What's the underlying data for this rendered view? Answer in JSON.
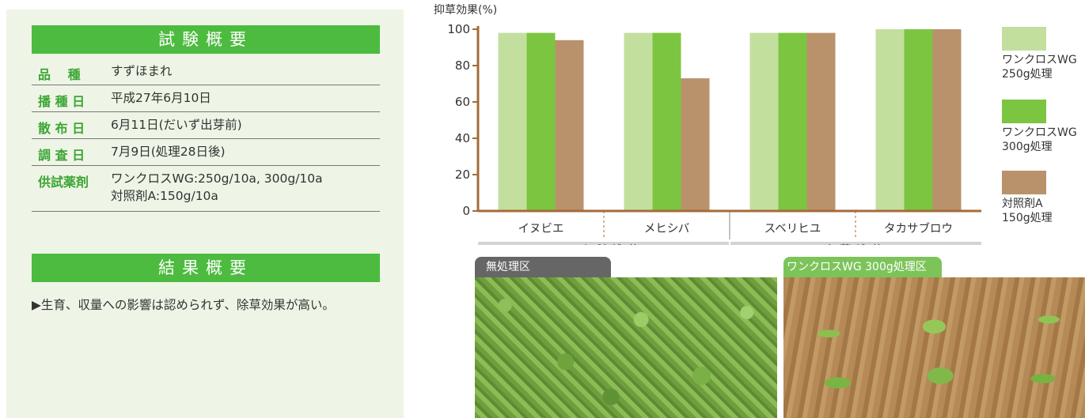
{
  "overview": {
    "header": "試験概要",
    "rows": [
      {
        "label": "品　 種",
        "value": "すずほまれ"
      },
      {
        "label": "播 種 日",
        "value": "平成27年6月10日"
      },
      {
        "label": "散 布 日",
        "value": "6月11日(だいず出芽前)"
      },
      {
        "label": "調 査 日",
        "value": "7月9日(処理28日後)"
      },
      {
        "label": "供試薬剤",
        "value": "ワンクロスWG:250g/10a, 300g/10a",
        "value2": "対照剤A:150g/10a"
      }
    ]
  },
  "results": {
    "header": "結果概要",
    "text": "▶生育、収量への影響は認められず、除草効果が高い。"
  },
  "chart_data": {
    "type": "bar",
    "ylabel": "抑草効果(%)",
    "ylim": [
      0,
      100
    ],
    "yticks": [
      0,
      20,
      40,
      60,
      80,
      100
    ],
    "categories": [
      "イヌビエ",
      "メヒシバ",
      "スベリヒユ",
      "タカサブロウ"
    ],
    "groups": [
      {
        "label": "イネ科雑草",
        "categories": [
          "イヌビエ",
          "メヒシバ"
        ]
      },
      {
        "label": "広葉雑草",
        "categories": [
          "スベリヒユ",
          "タカサブロウ"
        ]
      }
    ],
    "series": [
      {
        "name": "ワンクロスWG 250g処理",
        "line1": "ワンクロスWG",
        "line2": "250g処理",
        "color": "#c3df9e",
        "values": [
          98,
          98,
          98,
          100
        ]
      },
      {
        "name": "ワンクロスWG 300g処理",
        "line1": "ワンクロスWG",
        "line2": "300g処理",
        "color": "#7cc540",
        "values": [
          98,
          98,
          98,
          100
        ]
      },
      {
        "name": "対照剤A 150g処理",
        "line1": "対照剤A",
        "line2": "150g処理",
        "color": "#b9926b",
        "values": [
          94,
          73,
          98,
          100
        ]
      }
    ],
    "axis_color": "#a46c3a",
    "group_band_color": "#d3d3d3"
  },
  "photos": {
    "untreated_label": "無処理区",
    "treated_label": "ワンクロスWG 300g処理区"
  }
}
